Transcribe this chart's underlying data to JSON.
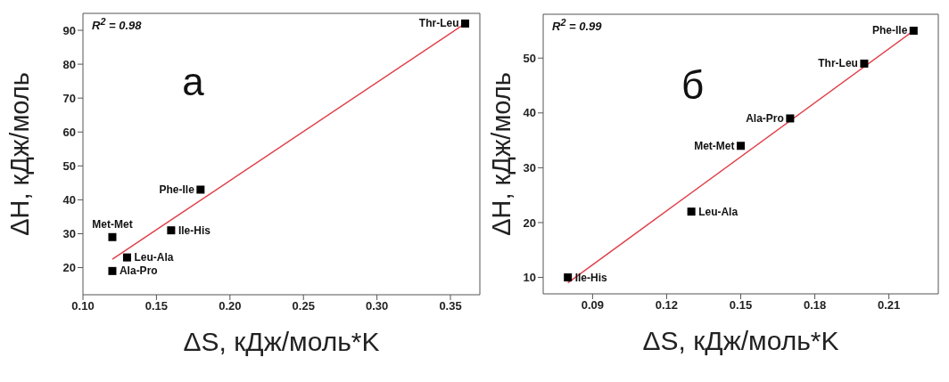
{
  "chart_data": [
    {
      "type": "scatter",
      "xlabel": "ΔS, кДж/моль*K",
      "ylabel": "ΔH, кДж/моль",
      "xlim": [
        0.1,
        0.37
      ],
      "ylim": [
        12,
        95
      ],
      "xticks": [
        {
          "value": 0.1,
          "label": "0.10"
        },
        {
          "value": 0.15,
          "label": "0.15"
        },
        {
          "value": 0.2,
          "label": "0.20"
        },
        {
          "value": 0.25,
          "label": "0.25"
        },
        {
          "value": 0.3,
          "label": "0.30"
        },
        {
          "value": 0.35,
          "label": "0.35"
        }
      ],
      "yticks": [
        20,
        30,
        40,
        50,
        60,
        70,
        80,
        90
      ],
      "series": [
        {
          "color": "#000000",
          "marker": "square",
          "x": [
            0.36,
            0.18,
            0.16,
            0.12,
            0.13,
            0.12
          ],
          "values": [
            92,
            43,
            31,
            29,
            23,
            19
          ],
          "value_labels": [
            "Thr-Leu",
            "Phe-Ile",
            "Ile-His",
            "Met-Met",
            "Leu-Ala",
            "Ala-Pro"
          ]
        },
        {
          "type": "line",
          "color": "#e0404a",
          "x": [
            0.12,
            0.36
          ],
          "values": [
            22.5,
            92
          ]
        }
      ],
      "annotations": [
        "R$^{2}$ = 0.98",
        "а"
      ]
    },
    {
      "type": "scatter",
      "xlabel": "ΔS, кДж/моль*K",
      "ylabel": "ΔH, кДж/моль",
      "xlim": [
        0.07,
        0.23
      ],
      "ylim": [
        7,
        58
      ],
      "xticks": [
        0.09,
        0.12,
        0.15,
        0.18,
        0.21
      ],
      "yticks": [
        10,
        20,
        30,
        40,
        50
      ],
      "series": [
        {
          "color": "#000000",
          "marker": "square",
          "x": [
            0.22,
            0.2,
            0.17,
            0.15,
            0.13,
            0.08
          ],
          "values": [
            55,
            49,
            39,
            34,
            22,
            10
          ],
          "value_labels": [
            "Phe-Ile",
            "Thr-Leu",
            "Ala-Pro",
            "Met-Met",
            "Leu-Ala",
            "Ile-His"
          ]
        },
        {
          "type": "line",
          "color": "#e0404a",
          "x": [
            0.08,
            0.22
          ],
          "values": [
            9,
            55
          ]
        }
      ],
      "annotations": [
        "R$^{2}$ = 0.99",
        "б"
      ]
    }
  ]
}
